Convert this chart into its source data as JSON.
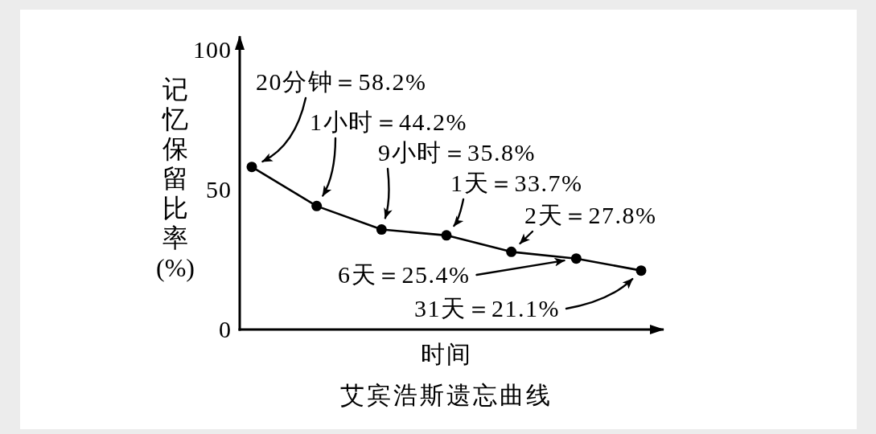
{
  "chart_data": {
    "type": "line",
    "title": "艾宾浩斯遗忘曲线",
    "xlabel": "时间",
    "ylabel": "记忆保留比率(%)",
    "categories": [
      null,
      null,
      null,
      null,
      null,
      null,
      null
    ],
    "values": [
      58.2,
      44.2,
      35.8,
      33.7,
      27.8,
      25.4,
      21.1
    ],
    "color": "#000000",
    "ylim": [
      0,
      105
    ],
    "yticks": [
      0,
      50,
      100
    ],
    "marker": "circle",
    "line_style": "solid",
    "annotations": [
      "20分钟＝58.2%",
      "1小时＝44.2%",
      "9小时＝35.8%",
      "1天＝33.7%",
      "2天＝27.8%",
      "6天＝25.4%",
      "31天＝21.1%"
    ]
  }
}
